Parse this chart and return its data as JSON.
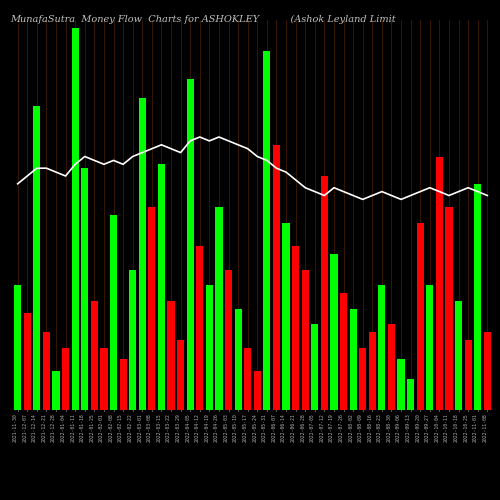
{
  "title": "MunafaSutra  Money Flow  Charts for ASHOKLEY          (Ashok Leyland Limit",
  "background_color": "#000000",
  "bar_colors_pattern": [
    "green",
    "red",
    "green",
    "red",
    "green",
    "red",
    "green",
    "green",
    "red",
    "red",
    "green",
    "red",
    "green",
    "green",
    "red",
    "green",
    "red",
    "red",
    "green",
    "red",
    "green",
    "green",
    "red",
    "green",
    "red",
    "red",
    "green",
    "red",
    "green",
    "red",
    "red",
    "green",
    "red",
    "green",
    "red",
    "green",
    "red",
    "red",
    "green",
    "red",
    "green",
    "green",
    "red",
    "green",
    "red",
    "red",
    "green",
    "red",
    "green",
    "red"
  ],
  "values": [
    32,
    25,
    78,
    20,
    10,
    16,
    98,
    62,
    28,
    16,
    50,
    13,
    36,
    80,
    52,
    63,
    28,
    18,
    85,
    42,
    32,
    52,
    36,
    26,
    16,
    10,
    92,
    68,
    48,
    42,
    36,
    22,
    60,
    40,
    30,
    26,
    16,
    20,
    32,
    22,
    13,
    8,
    48,
    32,
    65,
    52,
    28,
    18,
    58,
    20
  ],
  "mfi_line": [
    58,
    60,
    62,
    62,
    61,
    60,
    63,
    65,
    64,
    63,
    64,
    63,
    65,
    66,
    67,
    68,
    67,
    66,
    69,
    70,
    69,
    70,
    69,
    68,
    67,
    65,
    64,
    62,
    61,
    59,
    57,
    56,
    55,
    57,
    56,
    55,
    54,
    55,
    56,
    55,
    54,
    55,
    56,
    57,
    56,
    55,
    56,
    57,
    56,
    55
  ],
  "ylim_min": 0,
  "ylim_max": 100,
  "xlabel_rotation": 90,
  "grid_color": "#3d1a00",
  "title_color": "#c0c0c0",
  "title_fontsize": 7,
  "tick_fontsize": 3.5,
  "line_color": "#ffffff",
  "line_width": 1.2,
  "x_labels": [
    "2021-11-30",
    "2021-12-07",
    "2021-12-14",
    "2021-12-21",
    "2021-12-28",
    "2022-01-04",
    "2022-01-11",
    "2022-01-18",
    "2022-01-25",
    "2022-02-01",
    "2022-02-08",
    "2022-02-15",
    "2022-02-22",
    "2022-03-01",
    "2022-03-08",
    "2022-03-15",
    "2022-03-22",
    "2022-03-29",
    "2022-04-05",
    "2022-04-12",
    "2022-04-19",
    "2022-04-26",
    "2022-05-03",
    "2022-05-10",
    "2022-05-17",
    "2022-05-24",
    "2022-05-31",
    "2022-06-07",
    "2022-06-14",
    "2022-06-21",
    "2022-06-28",
    "2022-07-05",
    "2022-07-12",
    "2022-07-19",
    "2022-07-26",
    "2022-08-02",
    "2022-08-09",
    "2022-08-16",
    "2022-08-23",
    "2022-08-30",
    "2022-09-06",
    "2022-09-13",
    "2022-09-20",
    "2022-09-27",
    "2022-10-04",
    "2022-10-11",
    "2022-10-18",
    "2022-10-25",
    "2022-11-01",
    "2022-11-08"
  ]
}
